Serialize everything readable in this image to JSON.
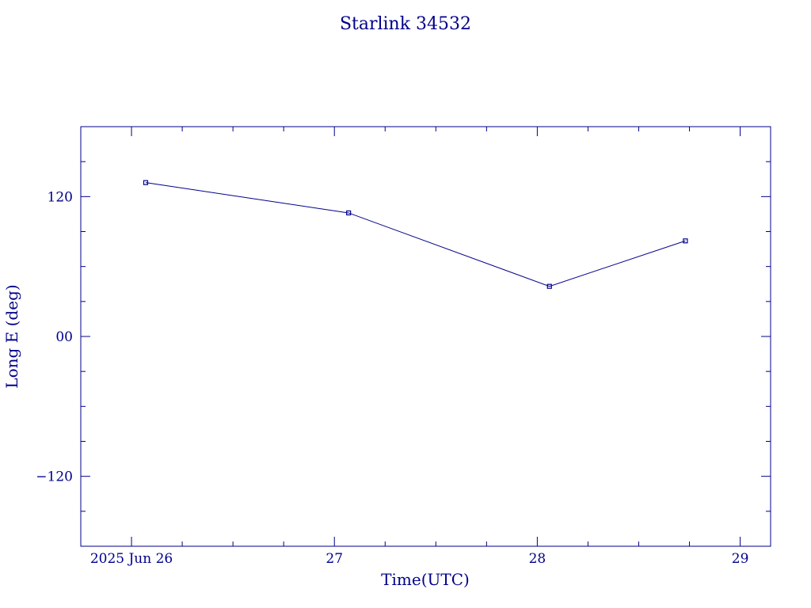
{
  "chart_data": {
    "type": "line",
    "title": "Starlink 34532",
    "xlabel": "Time(UTC)",
    "ylabel": "Long E (deg)",
    "x_ticks": [
      {
        "value": 26,
        "label": "2025 Jun 26"
      },
      {
        "value": 27,
        "label": "27"
      },
      {
        "value": 28,
        "label": "28"
      },
      {
        "value": 29,
        "label": "29"
      }
    ],
    "y_ticks": [
      {
        "value": 120,
        "label": "120"
      },
      {
        "value": 0,
        "label": "00"
      },
      {
        "value": -120,
        "label": "-120"
      }
    ],
    "xlim": [
      25.75,
      29.15
    ],
    "ylim": [
      -180,
      180
    ],
    "series": [
      {
        "x": [
          26.07,
          27.07,
          28.06,
          28.73
        ],
        "y": [
          132,
          106,
          43,
          82
        ]
      }
    ],
    "colors": {
      "axis": "#00008b",
      "line": "#00008b"
    }
  }
}
